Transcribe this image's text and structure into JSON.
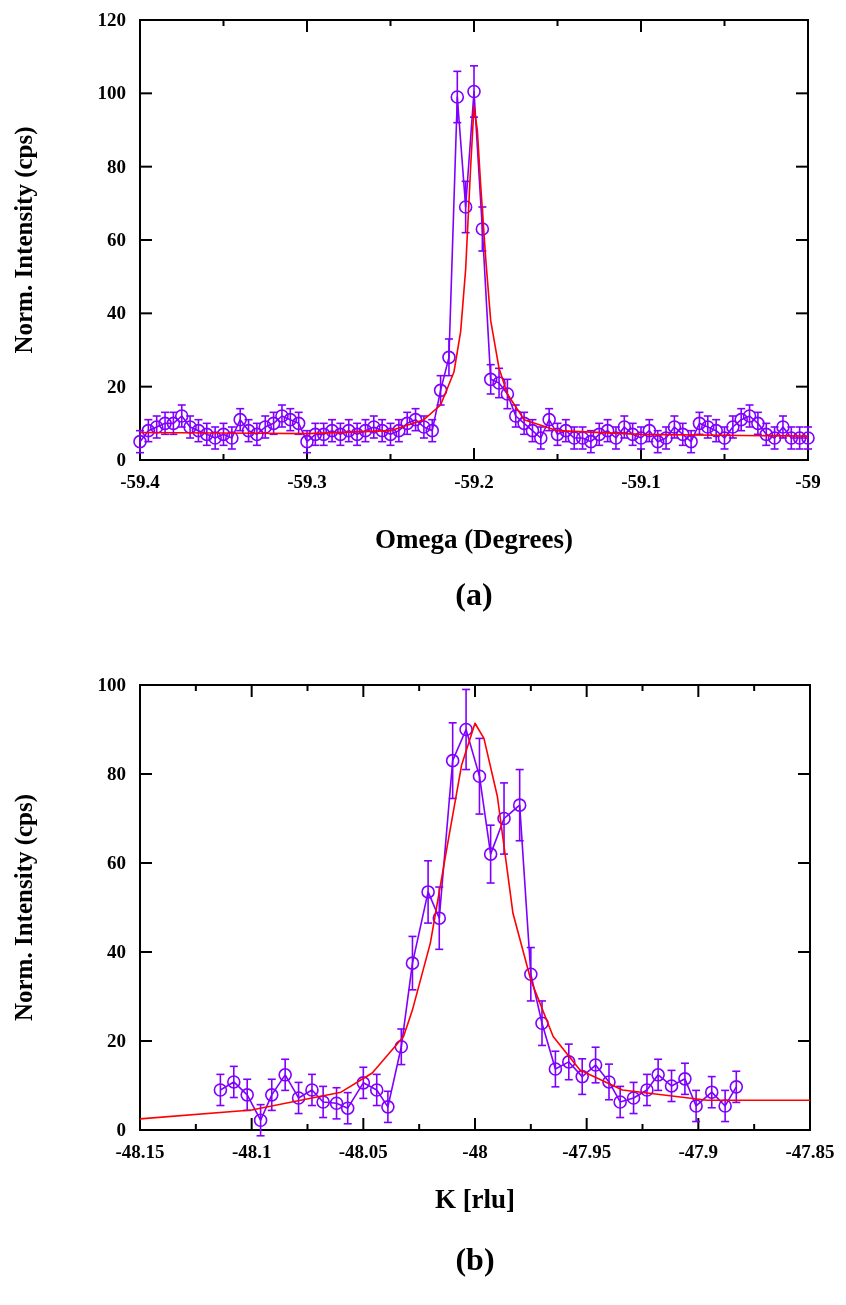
{
  "chart_data": [
    {
      "type": "line",
      "xlabel": "Omega (Degrees)",
      "ylabel": "Norm. Intensity (cps)",
      "annotations": [
        "(a)"
      ],
      "xlim": [
        -59.4,
        -59
      ],
      "ylim": [
        0,
        120
      ],
      "xticks": [
        -59.4,
        {
          "value": -59.35,
          "label": null
        },
        -59.3,
        {
          "value": -59.25,
          "label": null
        },
        -59.2,
        {
          "value": -59.15,
          "label": null
        },
        -59.1,
        {
          "value": -59.05,
          "label": null
        },
        -59
      ],
      "yticks": [
        0,
        20,
        40,
        60,
        80,
        100,
        120
      ],
      "series": [
        {
          "color": "#7f00ff",
          "marker": "circle",
          "x": [
            -59.4,
            -59.395,
            -59.39,
            -59.385,
            -59.38,
            -59.375,
            -59.37,
            -59.365,
            -59.36,
            -59.355,
            -59.35,
            -59.345,
            -59.34,
            -59.335,
            -59.33,
            -59.325,
            -59.32,
            -59.315,
            -59.31,
            -59.305,
            -59.3,
            -59.295,
            -59.29,
            -59.285,
            -59.28,
            -59.275,
            -59.27,
            -59.265,
            -59.26,
            -59.255,
            -59.25,
            -59.245,
            -59.24,
            -59.235,
            -59.23,
            -59.225,
            -59.22,
            -59.215,
            -59.21,
            -59.205,
            -59.2,
            -59.195,
            -59.19,
            -59.185,
            -59.18,
            -59.175,
            -59.17,
            -59.165,
            -59.16,
            -59.155,
            -59.15,
            -59.145,
            -59.14,
            -59.135,
            -59.13,
            -59.125,
            -59.12,
            -59.115,
            -59.11,
            -59.105,
            -59.1,
            -59.095,
            -59.09,
            -59.085,
            -59.08,
            -59.075,
            -59.07,
            -59.065,
            -59.06,
            -59.055,
            -59.05,
            -59.045,
            -59.04,
            -59.035,
            -59.03,
            -59.025,
            -59.02,
            -59.015,
            -59.01,
            -59.005,
            -59
          ],
          "values": [
            5,
            8,
            9,
            10,
            10,
            12,
            9,
            8,
            7,
            6,
            7,
            6,
            11,
            8,
            7,
            9,
            10,
            12,
            11,
            10,
            5,
            7,
            7,
            8,
            7,
            8,
            7,
            8,
            9,
            8,
            7,
            8,
            10,
            11,
            9,
            8,
            19,
            28,
            99,
            69,
            100.5,
            63,
            22,
            21,
            18,
            12,
            10,
            8,
            6,
            11,
            7,
            8,
            6,
            6,
            5,
            7,
            8,
            6,
            9,
            7,
            6,
            8,
            5,
            6,
            9,
            7,
            5,
            10,
            9,
            8,
            6,
            9,
            11,
            12,
            10,
            7,
            6,
            9,
            6,
            6,
            6
          ],
          "errors": [
            3,
            3,
            3,
            3,
            3,
            3,
            3,
            3,
            3,
            3,
            3,
            3,
            3,
            3,
            3,
            3,
            3,
            3,
            3,
            3,
            3,
            3,
            3,
            3,
            3,
            3,
            3,
            3,
            3,
            3,
            3,
            3,
            3,
            3,
            3,
            3,
            4,
            5,
            7,
            7,
            7,
            6,
            4,
            4,
            4,
            3,
            3,
            3,
            3,
            3,
            3,
            3,
            3,
            3,
            3,
            3,
            3,
            3,
            3,
            3,
            3,
            3,
            3,
            3,
            3,
            3,
            3,
            3,
            3,
            3,
            3,
            3,
            3,
            3,
            3,
            3,
            3,
            3,
            3,
            3,
            3
          ]
        },
        {
          "color": "#ff0000",
          "marker": "none",
          "x": [
            -59.4,
            -59.3,
            -59.25,
            -59.23,
            -59.22,
            -59.212,
            -59.208,
            -59.205,
            -59.202,
            -59.2,
            -59.198,
            -59.196,
            -59.193,
            -59.19,
            -59.185,
            -59.18,
            -59.17,
            -59.15,
            -59.1,
            -59.0
          ],
          "values": [
            7.5,
            7.2,
            8,
            11,
            15,
            24,
            35,
            52,
            80,
            96.5,
            90,
            75,
            55,
            38,
            25,
            18,
            11,
            8,
            7,
            6.5
          ]
        }
      ]
    },
    {
      "type": "line",
      "xlabel": "K [rlu]",
      "ylabel": "Norm. Intensity (cps)",
      "annotations": [
        "(b)"
      ],
      "xlim": [
        -48.15,
        -47.85
      ],
      "ylim": [
        0,
        100
      ],
      "xticks": [
        -48.15,
        {
          "value": -48.125,
          "label": null
        },
        -48.1,
        {
          "value": -48.075,
          "label": null
        },
        -48.05,
        {
          "value": -48.025,
          "label": null
        },
        -48,
        {
          "value": -47.975,
          "label": null
        },
        -47.95,
        {
          "value": -47.925,
          "label": null
        },
        -47.9,
        {
          "value": -47.875,
          "label": null
        },
        -47.85
      ],
      "yticks": [
        0,
        20,
        40,
        60,
        80,
        100
      ],
      "series": [
        {
          "color": "#7f00ff",
          "marker": "circle",
          "x": [
            -48.114,
            -48.108,
            -48.102,
            -48.096,
            -48.091,
            -48.085,
            -48.079,
            -48.073,
            -48.068,
            -48.062,
            -48.057,
            -48.05,
            -48.044,
            -48.039,
            -48.033,
            -48.028,
            -48.021,
            -48.016,
            -48.01,
            -48.004,
            -47.998,
            -47.993,
            -47.987,
            -47.98,
            -47.975,
            -47.97,
            -47.964,
            -47.958,
            -47.952,
            -47.946,
            -47.94,
            -47.935,
            -47.929,
            -47.923,
            -47.918,
            -47.912,
            -47.906,
            -47.901,
            -47.894,
            -47.888,
            -47.883
          ],
          "values": [
            9,
            10.8,
            7.9,
            2.2,
            7.9,
            12.4,
            7.2,
            9,
            6.3,
            6,
            4.9,
            10.6,
            9,
            5.2,
            18.7,
            37.5,
            53.5,
            47.6,
            83,
            90,
            79.5,
            62,
            70,
            73,
            35,
            24,
            13.7,
            15.3,
            12,
            14.6,
            10.8,
            6.3,
            7.2,
            9,
            12.4,
            9.9,
            11.5,
            5.4,
            8.5,
            5.4,
            9.7
          ],
          "errors": [
            3.5,
            3.5,
            3.5,
            3.5,
            3.5,
            3.5,
            3.5,
            3.5,
            3.5,
            3.5,
            3.5,
            3.5,
            3.5,
            3.5,
            4,
            6,
            7,
            7,
            8.5,
            9,
            8.5,
            6.5,
            8,
            8,
            6,
            5,
            4,
            4,
            4,
            4,
            4,
            3.5,
            3.5,
            3.5,
            3.5,
            3.5,
            3.5,
            3.5,
            3.5,
            3.5,
            3.5
          ]
        },
        {
          "color": "#ff0000",
          "marker": "none",
          "x": [
            -48.15,
            -48.1,
            -48.06,
            -48.046,
            -48.032,
            -48.028,
            -48.02,
            -48.0125,
            -48.006,
            -48.0,
            -47.996,
            -47.99,
            -47.983,
            -47.975,
            -47.965,
            -47.953,
            -47.934,
            -47.896,
            -47.85
          ],
          "values": [
            2.5,
            4.5,
            8.5,
            12.8,
            21,
            27,
            42,
            63.6,
            82,
            91.4,
            88,
            75,
            48.7,
            33.7,
            21,
            13.5,
            9,
            6.7,
            6.7
          ]
        }
      ]
    }
  ]
}
